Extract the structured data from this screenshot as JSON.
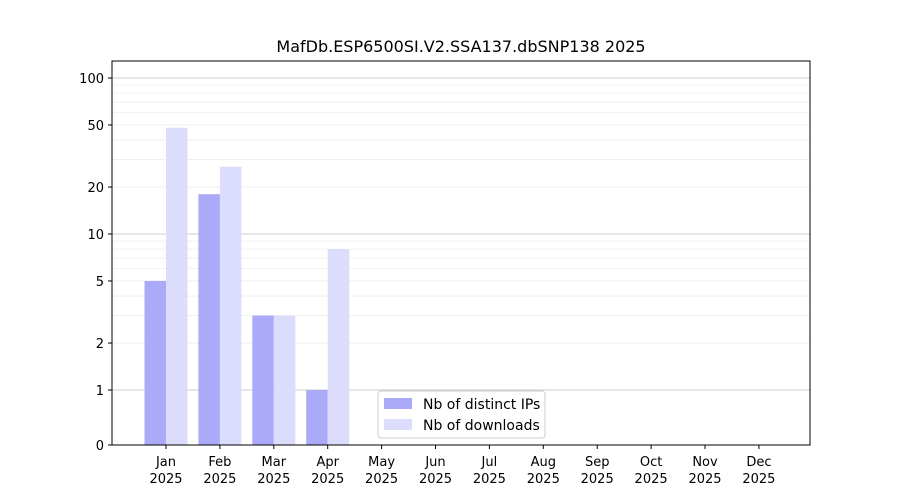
{
  "chart_data": {
    "type": "bar",
    "title": "MafDb.ESP6500SI.V2.SSA137.dbSNP138 2025",
    "xlabel": "",
    "ylabel": "",
    "y_scale": "symlog",
    "ylim": [
      0,
      120
    ],
    "grid": true,
    "legend_position": "lower-center",
    "categories": [
      {
        "month": "Jan",
        "year": "2025"
      },
      {
        "month": "Feb",
        "year": "2025"
      },
      {
        "month": "Mar",
        "year": "2025"
      },
      {
        "month": "Apr",
        "year": "2025"
      },
      {
        "month": "May",
        "year": "2025"
      },
      {
        "month": "Jun",
        "year": "2025"
      },
      {
        "month": "Jul",
        "year": "2025"
      },
      {
        "month": "Aug",
        "year": "2025"
      },
      {
        "month": "Sep",
        "year": "2025"
      },
      {
        "month": "Oct",
        "year": "2025"
      },
      {
        "month": "Nov",
        "year": "2025"
      },
      {
        "month": "Dec",
        "year": "2025"
      }
    ],
    "y_ticks": [
      {
        "value": 0,
        "label": "0"
      },
      {
        "value": 1,
        "label": "1"
      },
      {
        "value": 2,
        "label": "2"
      },
      {
        "value": 5,
        "label": "5"
      },
      {
        "value": 10,
        "label": "10"
      },
      {
        "value": 20,
        "label": "20"
      },
      {
        "value": 50,
        "label": "50"
      },
      {
        "value": 100,
        "label": "100"
      }
    ],
    "series": [
      {
        "name": "Nb of distinct IPs",
        "color": "#aaaaf8",
        "values": [
          5,
          18,
          3,
          1,
          0,
          0,
          0,
          0,
          0,
          0,
          0,
          0
        ]
      },
      {
        "name": "Nb of downloads",
        "color": "#dcdcfc",
        "values": [
          48,
          27,
          3,
          8,
          0,
          0,
          0,
          0,
          0,
          0,
          0,
          0
        ]
      }
    ]
  }
}
